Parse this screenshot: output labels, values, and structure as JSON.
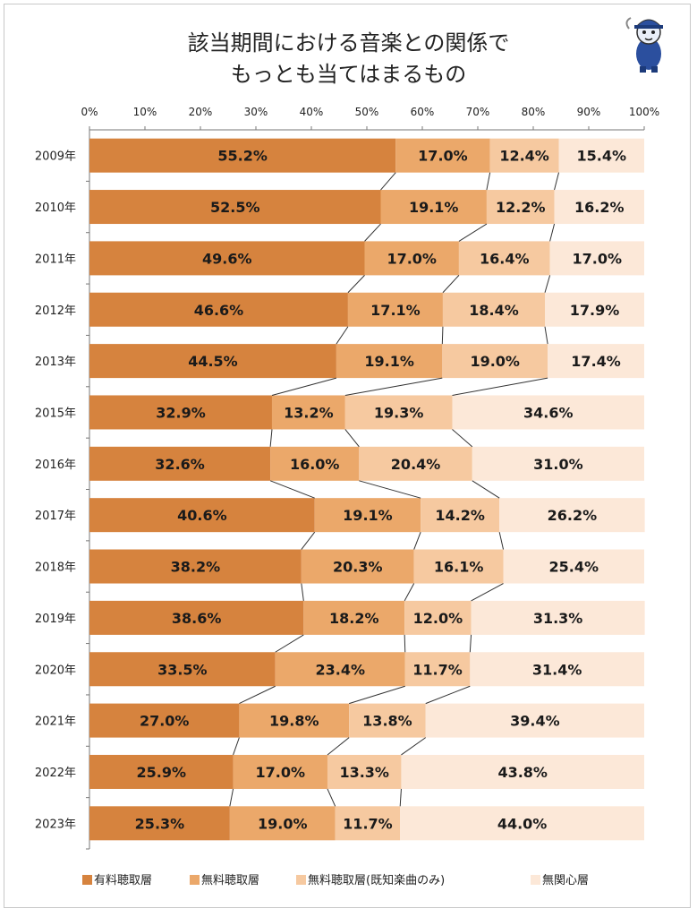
{
  "chart_data": {
    "type": "bar",
    "orientation": "horizontal",
    "stacked": true,
    "percent": true,
    "title": [
      "該当期間における音楽との関係で",
      "もっとも当てはまるもの"
    ],
    "categories": [
      "2009年",
      "2010年",
      "2011年",
      "2012年",
      "2013年",
      "2015年",
      "2016年",
      "2017年",
      "2018年",
      "2019年",
      "2020年",
      "2021年",
      "2022年",
      "2023年"
    ],
    "x_ticks": [
      "0%",
      "10%",
      "20%",
      "30%",
      "40%",
      "50%",
      "60%",
      "70%",
      "80%",
      "90%",
      "100%"
    ],
    "xlim": [
      0,
      100
    ],
    "legend_position": "bottom",
    "series": [
      {
        "name": "有料聴取層",
        "color": "#d6833e",
        "values": [
          55.2,
          52.5,
          49.6,
          46.6,
          44.5,
          32.9,
          32.6,
          40.6,
          38.2,
          38.6,
          33.5,
          27.0,
          25.9,
          25.3
        ],
        "labels": [
          "55.2%",
          "52.5%",
          "49.6%",
          "46.6%",
          "44.5%",
          "32.9%",
          "32.6%",
          "40.6%",
          "38.2%",
          "38.6%",
          "33.5%",
          "27.0%",
          "25.9%",
          "25.3%"
        ]
      },
      {
        "name": "無料聴取層",
        "color": "#eba86a",
        "values": [
          17.0,
          19.1,
          17.0,
          17.1,
          19.1,
          13.2,
          16.0,
          19.1,
          20.3,
          18.2,
          23.4,
          19.8,
          17.0,
          19.0
        ],
        "labels": [
          "17.0%",
          "19.1%",
          "17.0%",
          "17.1%",
          "19.1%",
          "13.2%",
          "16.0%",
          "19.1%",
          "20.3%",
          "18.2%",
          "23.4%",
          "19.8%",
          "17.0%",
          "19.0%"
        ]
      },
      {
        "name": "無料聴取層(既知楽曲のみ)",
        "color": "#f6c9a0",
        "values": [
          12.4,
          12.2,
          16.4,
          18.4,
          19.0,
          19.3,
          20.4,
          14.2,
          16.1,
          12.0,
          11.7,
          13.8,
          13.3,
          11.7
        ],
        "labels": [
          "12.4%",
          "12.2%",
          "16.4%",
          "18.4%",
          "19.0%",
          "19.3%",
          "20.4%",
          "14.2%",
          "16.1%",
          "12.0%",
          "11.7%",
          "13.8%",
          "13.3%",
          "11.7%"
        ]
      },
      {
        "name": "無関心層",
        "color": "#fce8d8",
        "values": [
          15.4,
          16.2,
          17.0,
          17.9,
          17.4,
          34.6,
          31.0,
          26.2,
          25.4,
          31.3,
          31.4,
          39.4,
          43.8,
          44.0
        ],
        "labels": [
          "15.4%",
          "16.2%",
          "17.0%",
          "17.9%",
          "17.4%",
          "34.6%",
          "31.0%",
          "26.2%",
          "25.4%",
          "31.3%",
          "31.4%",
          "39.4%",
          "43.8%",
          "44.0%"
        ]
      }
    ],
    "series_lines": true,
    "grid": false
  }
}
